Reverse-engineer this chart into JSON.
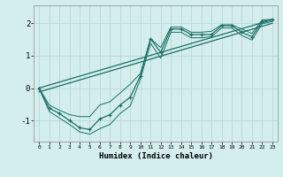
{
  "xlabel": "Humidex (Indice chaleur)",
  "background_color": "#d4eeed",
  "grid_color": "#b8d8d5",
  "line_color": "#1a6e65",
  "x": [
    0,
    1,
    2,
    3,
    4,
    5,
    6,
    7,
    8,
    9,
    10,
    11,
    12,
    13,
    14,
    15,
    16,
    17,
    18,
    19,
    20,
    21,
    22,
    23
  ],
  "y_main": [
    0.0,
    -0.62,
    -0.78,
    -1.0,
    -1.22,
    -1.28,
    -0.95,
    -0.82,
    -0.52,
    -0.28,
    0.38,
    1.52,
    1.1,
    1.82,
    1.82,
    1.65,
    1.65,
    1.65,
    1.92,
    1.92,
    1.72,
    1.58,
    2.05,
    2.1
  ],
  "y_line1": [
    0.0,
    0.092,
    0.183,
    0.275,
    0.366,
    0.458,
    0.549,
    0.641,
    0.732,
    0.824,
    0.915,
    1.007,
    1.098,
    1.19,
    1.281,
    1.373,
    1.464,
    1.556,
    1.647,
    1.739,
    1.83,
    1.922,
    2.013,
    2.105
  ],
  "y_line2": [
    -0.12,
    -0.028,
    0.064,
    0.156,
    0.248,
    0.34,
    0.432,
    0.524,
    0.616,
    0.708,
    0.8,
    0.892,
    0.984,
    1.076,
    1.168,
    1.26,
    1.352,
    1.444,
    1.536,
    1.628,
    1.72,
    1.812,
    1.904,
    1.996
  ],
  "y_upper": [
    0.0,
    -0.52,
    -0.68,
    -0.82,
    -0.88,
    -0.88,
    -0.52,
    -0.42,
    -0.15,
    0.12,
    0.45,
    1.52,
    1.25,
    1.88,
    1.88,
    1.72,
    1.72,
    1.75,
    1.95,
    1.95,
    1.82,
    1.68,
    2.1,
    2.12
  ],
  "y_lower": [
    0.0,
    -0.72,
    -0.92,
    -1.12,
    -1.35,
    -1.42,
    -1.25,
    -1.12,
    -0.78,
    -0.55,
    0.28,
    1.38,
    0.92,
    1.72,
    1.72,
    1.55,
    1.55,
    1.58,
    1.85,
    1.85,
    1.62,
    1.48,
    1.98,
    2.05
  ],
  "xlim": [
    -0.5,
    23.5
  ],
  "ylim": [
    -1.65,
    2.55
  ],
  "yticks": [
    -1,
    0,
    1,
    2
  ],
  "xtick_labels": [
    "0",
    "1",
    "2",
    "3",
    "4",
    "5",
    "6",
    "7",
    "8",
    "9",
    "10",
    "11",
    "12",
    "13",
    "14",
    "15",
    "16",
    "17",
    "18",
    "19",
    "20",
    "21",
    "22",
    "23"
  ]
}
